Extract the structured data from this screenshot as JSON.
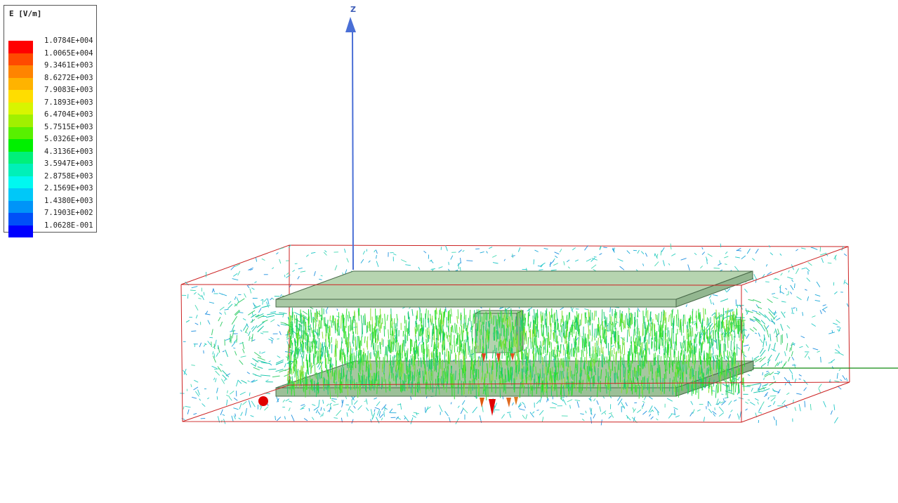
{
  "legend": {
    "title": "E [V/m]",
    "entries": [
      {
        "label": "1.0784E+004",
        "color": "#ff0000"
      },
      {
        "label": "1.0065E+004",
        "color": "#ff4a00"
      },
      {
        "label": "9.3461E+003",
        "color": "#ff8400"
      },
      {
        "label": "8.6272E+003",
        "color": "#ffb300"
      },
      {
        "label": "7.9083E+003",
        "color": "#ffdd00"
      },
      {
        "label": "7.1893E+003",
        "color": "#d8f500"
      },
      {
        "label": "6.4704E+003",
        "color": "#a0f000"
      },
      {
        "label": "5.7515E+003",
        "color": "#58f000"
      },
      {
        "label": "5.0326E+003",
        "color": "#00f000"
      },
      {
        "label": "4.3136E+003",
        "color": "#00f07a"
      },
      {
        "label": "3.5947E+003",
        "color": "#00f0b8"
      },
      {
        "label": "2.8758E+003",
        "color": "#00f8f0"
      },
      {
        "label": "2.1569E+003",
        "color": "#00c8f8"
      },
      {
        "label": "1.4380E+003",
        "color": "#0094f8"
      },
      {
        "label": "7.1903E+002",
        "color": "#0050f8"
      },
      {
        "label": "1.0628E-001",
        "color": "#0000ff"
      }
    ]
  },
  "axes": {
    "z_label": "Z",
    "z_color": "#4a6fd6",
    "y_color": "#0f8a0f"
  },
  "colors": {
    "box_outline": "#cc2222",
    "plate_fill": "#9fc49f",
    "plate_edge": "#4a6a4a",
    "field_strong": "#22dd22",
    "field_weak": "#22cccc",
    "field_peak": "#e03020",
    "port_marker": "#e00000"
  }
}
